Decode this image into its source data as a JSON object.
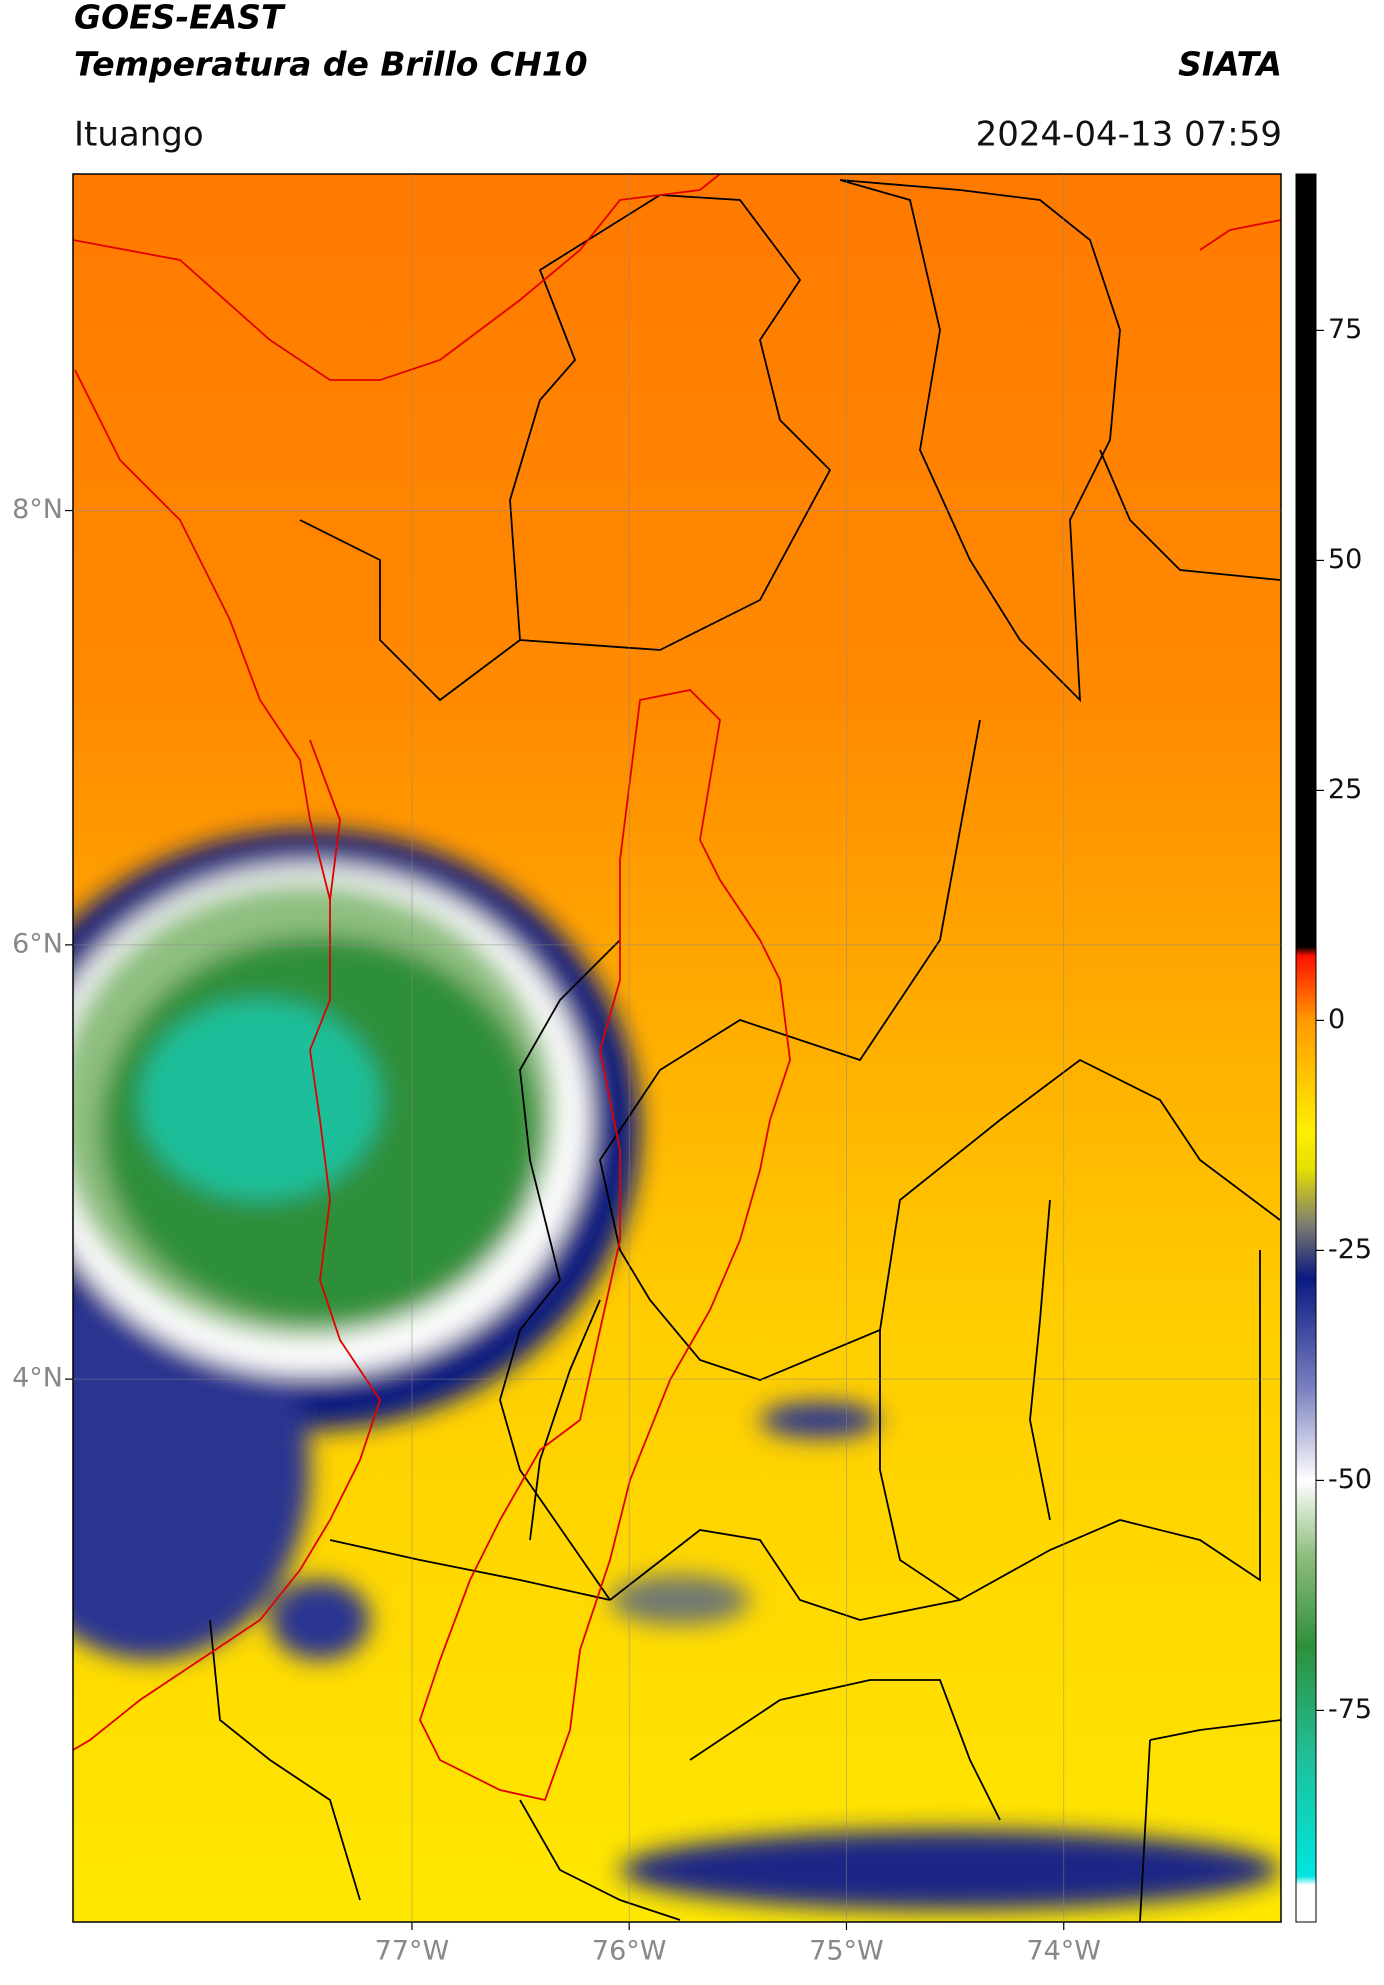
{
  "chart_data": {
    "type": "map",
    "title": "GOES-EAST",
    "subtitle": "Temperatura de Brillo CH10",
    "source": "SIATA",
    "location": "Ituango",
    "datetime": "2024-04-13 07:59",
    "xlim": [
      -78.56,
      -73.0
    ],
    "ylim": [
      1.5,
      9.55
    ],
    "xticks": [
      {
        "value": -77,
        "label": "77°W"
      },
      {
        "value": -76,
        "label": "76°W"
      },
      {
        "value": -75,
        "label": "75°W"
      },
      {
        "value": -74,
        "label": "74°W"
      }
    ],
    "yticks": [
      {
        "value": 8,
        "label": "8°N"
      },
      {
        "value": 6,
        "label": "6°N"
      },
      {
        "value": 4,
        "label": "4°N"
      }
    ],
    "grid": true,
    "colorbar_lim": [
      -98,
      92
    ],
    "colorbar_ticks": [
      75,
      50,
      25,
      0,
      -25,
      -50,
      -75
    ],
    "colormap": [
      [
        -98,
        "#ffffff"
      ],
      [
        -94,
        "#ffffff"
      ],
      [
        -93,
        "#00e5e0"
      ],
      [
        -80,
        "#1fbf9a"
      ],
      [
        -68,
        "#2f8f3a"
      ],
      [
        -58,
        "#8fbf80"
      ],
      [
        -50,
        "#ffffff"
      ],
      [
        -40,
        "#7a80c0"
      ],
      [
        -28,
        "#0a1a80"
      ],
      [
        -22,
        "#808070"
      ],
      [
        -16,
        "#e8e000"
      ],
      [
        -12,
        "#ffee00"
      ],
      [
        0,
        "#ff9a00"
      ],
      [
        7,
        "#ff1000"
      ],
      [
        8,
        "#000000"
      ],
      [
        92,
        "#000000"
      ]
    ]
  }
}
